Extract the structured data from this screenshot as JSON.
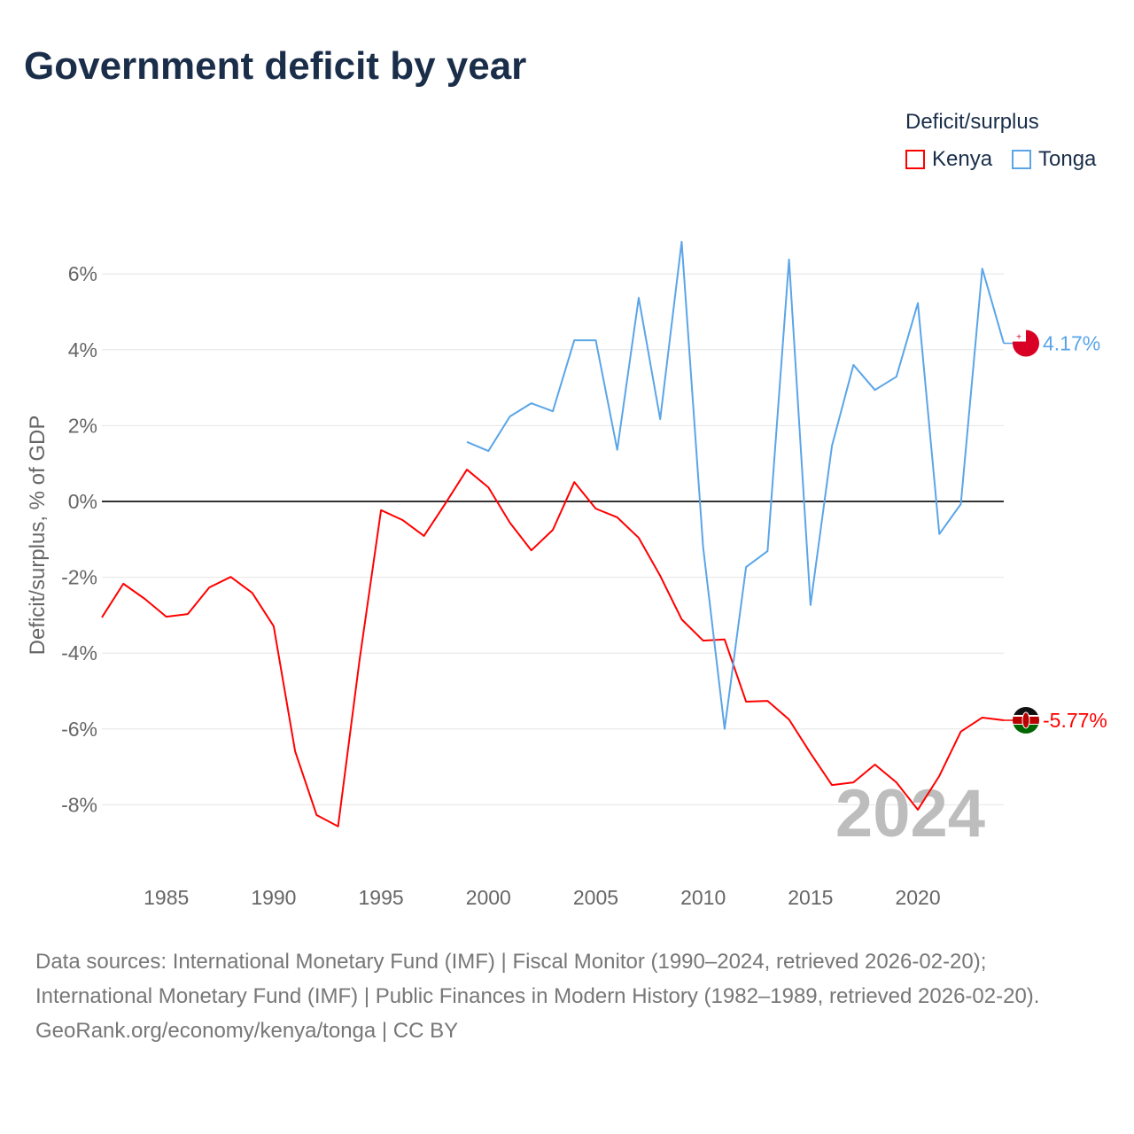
{
  "chart_data": {
    "type": "line",
    "title": "Government deficit by year",
    "ylabel": "Deficit/surplus, % of GDP",
    "xlabel": "",
    "ylim": [
      -9.8,
      7
    ],
    "xlim": [
      1982,
      2024
    ],
    "yticks": [
      6,
      4,
      2,
      0,
      -2,
      -4,
      -6,
      -8
    ],
    "ytick_labels": [
      "6%",
      "4%",
      "2%",
      "0%",
      "-2%",
      "-4%",
      "-6%",
      "-8%"
    ],
    "xticks": [
      1985,
      1990,
      1995,
      2000,
      2005,
      2010,
      2015,
      2020
    ],
    "xtick_labels": [
      "1985",
      "1990",
      "1995",
      "2000",
      "2005",
      "2010",
      "2015",
      "2020"
    ],
    "grid": true,
    "legend": {
      "title": "Deficit/surplus",
      "placement": "top-right"
    },
    "year_watermark": "2024",
    "series": [
      {
        "name": "Kenya",
        "color": "#ff0000",
        "end_label": "-5.77%",
        "x": [
          1982,
          1983,
          1984,
          1985,
          1986,
          1987,
          1988,
          1989,
          1990,
          1991,
          1992,
          1993,
          1994,
          1995,
          1996,
          1997,
          1998,
          1999,
          2000,
          2001,
          2002,
          2003,
          2004,
          2005,
          2006,
          2007,
          2008,
          2009,
          2010,
          2011,
          2012,
          2013,
          2014,
          2015,
          2016,
          2017,
          2018,
          2019,
          2020,
          2021,
          2022,
          2023,
          2024
        ],
        "values": [
          -3.06,
          -2.17,
          -2.57,
          -3.04,
          -2.97,
          -2.27,
          -1.99,
          -2.41,
          -3.29,
          -6.59,
          -8.27,
          -8.57,
          -4.18,
          -0.23,
          -0.49,
          -0.91,
          -0.05,
          0.84,
          0.37,
          -0.56,
          -1.29,
          -0.75,
          0.51,
          -0.19,
          -0.42,
          -0.96,
          -1.96,
          -3.11,
          -3.67,
          -3.64,
          -5.28,
          -5.26,
          -5.75,
          -6.64,
          -7.48,
          -7.41,
          -6.94,
          -7.41,
          -8.13,
          -7.24,
          -6.07,
          -5.7,
          -5.77
        ]
      },
      {
        "name": "Tonga",
        "color": "#5aa5e8",
        "end_label": "4.17%",
        "x": [
          1999,
          2000,
          2001,
          2002,
          2003,
          2004,
          2005,
          2006,
          2007,
          2008,
          2009,
          2010,
          2011,
          2012,
          2013,
          2014,
          2015,
          2016,
          2017,
          2018,
          2019,
          2020,
          2021,
          2022,
          2023,
          2024
        ],
        "values": [
          1.57,
          1.33,
          2.24,
          2.59,
          2.38,
          4.25,
          4.25,
          1.36,
          5.37,
          2.17,
          6.85,
          -1.21,
          -6.0,
          -1.73,
          -1.31,
          6.38,
          -2.73,
          1.47,
          3.6,
          2.94,
          3.29,
          5.23,
          -0.86,
          -0.07,
          6.14,
          4.17
        ]
      }
    ]
  },
  "footer": {
    "sources": "Data sources: International Monetary Fund (IMF) | Fiscal Monitor (1990–2024, retrieved 2026-02-20); International Monetary Fund (IMF) | Public Finances in Modern History (1982–1989, retrieved 2026-02-20).",
    "credit": "GeoRank.org/economy/kenya/tonga | CC BY"
  }
}
